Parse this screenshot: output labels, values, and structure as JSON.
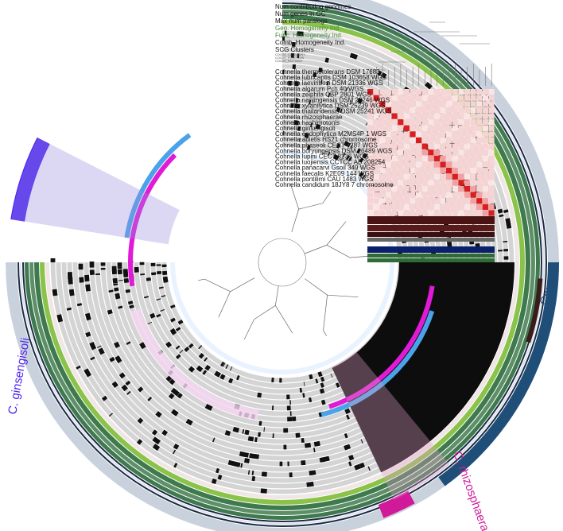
{
  "layer_labels": [
    {
      "text": "Num contributing genomes",
      "color": "#1b2b46"
    },
    {
      "text": "Num genes in GC",
      "color": "#1b2b46"
    },
    {
      "text": "Max num paralogs",
      "color": "#1b2b46"
    },
    {
      "text": "Geo. Homogeneity Ind.",
      "color": "#3f8f3a"
    },
    {
      "text": "Func. Homogeneity Ind.",
      "color": "#3f8f3a"
    },
    {
      "text": "Comb. Homogeneity Ind.",
      "color": "#1b2b46"
    },
    {
      "text": "SCG Clusters",
      "color": "#1b2b46"
    }
  ],
  "tiny_labels": [
    "COG20_CATEGORY",
    "COG20_FUNCTION",
    "COG20_PATHWAY"
  ],
  "genomes": [
    "Cohnella thermotolerans DSM 17683",
    "Cohnella lubricantis DSM 103658 WGS",
    "Cohnella laeviribosi DSM 21336 WGS",
    "Cohnella algarum Pch 40 WGS",
    "Cohnella zeiphila CBP 2801 WGS",
    "Cohnella nanjingensis DSM 28246 WGS",
    "Cohnella xylanilytica DSM 25239 WGS",
    "Cohnella thailandensis DSM 25241 WGS",
    "Cohnella rhizosphaerae",
    "Cohnella hashimotonis",
    "Cohnella ginsengisoli",
    "Cohnella endophytica M2MS4P 1 WGS",
    "Cohnella abietis HS21 chromosome",
    "Cohnella phaseoli CECT 7287 WGS",
    "Cohnella boryungensis DSM 26489 WGS",
    "Cohnella lupini CECT 8236 WGS",
    "Cohnella luojiensis CCTCC AB 208254",
    "Cohnella panacarvi Gsoil 349 WGS",
    "Cohnella faecalis K2E09 144 WGS",
    "Cohnella pontilimi CAU 1483 WGS",
    "Cohnella candidum 18JY8 7 chromosome"
  ],
  "bins": {
    "core": "Core",
    "ginsengisoli": "C. ginsengisoli",
    "rhizosphaerae": "C. rhizosphaerae"
  },
  "colors": {
    "core": "#1f4e79",
    "ginsengisoli": "#4b22f2",
    "rhizosphaerae": "#d11a9a",
    "green_dark": "#3e7a4e",
    "green_light": "#8bc34a",
    "magenta": "#e11ad8",
    "blue": "#4aa3e8",
    "navy": "#1b2b46"
  }
}
